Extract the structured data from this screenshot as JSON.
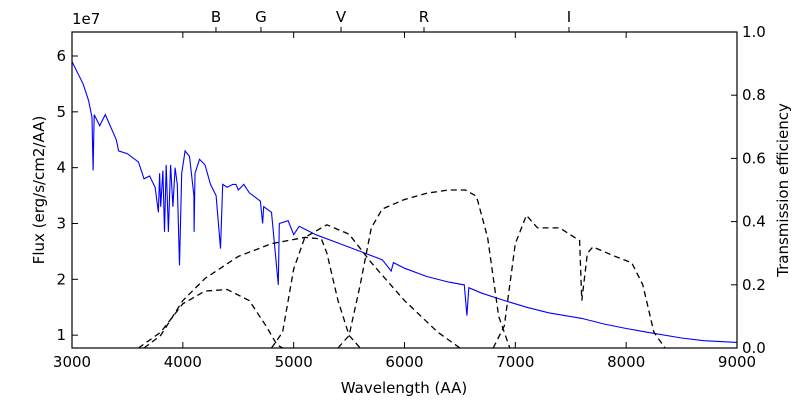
{
  "chart_data": {
    "type": "line",
    "xlabel": "Wavelength (AA)",
    "ylabel": "Flux (erg/s/cm2/AA)",
    "y2label": "Transmission efficiency",
    "y_offset_text": "1e7",
    "xlim": [
      3000,
      9000
    ],
    "xticks": [
      3000,
      4000,
      5000,
      6000,
      7000,
      8000,
      9000
    ],
    "ylim": [
      0.77,
      6.43
    ],
    "yticks": [
      1,
      2,
      3,
      4,
      5,
      6
    ],
    "y2lim": [
      0,
      1
    ],
    "y2ticks": [
      {
        "value": 0,
        "label": "0.0"
      },
      {
        "value": 0.2,
        "label": "0.2"
      },
      {
        "value": 0.4,
        "label": "0.4"
      },
      {
        "value": 0.6,
        "label": "0.6"
      },
      {
        "value": 0.8,
        "label": "0.8"
      },
      {
        "value": 1,
        "label": "1.0"
      }
    ],
    "x2ticks": [
      {
        "value": 4299,
        "label": "B"
      },
      {
        "value": 4705,
        "label": "G"
      },
      {
        "value": 5427,
        "label": "V"
      },
      {
        "value": 6176,
        "label": "R"
      },
      {
        "value": 7484,
        "label": "I"
      }
    ],
    "series": [
      {
        "color": "#0000ff",
        "line_style": "solid",
        "x": [
          3000,
          3100,
          3150,
          3180,
          3190,
          3200,
          3250,
          3300,
          3400,
          3420,
          3500,
          3600,
          3650,
          3700,
          3750,
          3780,
          3790,
          3800,
          3820,
          3835,
          3850,
          3870,
          3890,
          3910,
          3930,
          3950,
          3970,
          3990,
          4020,
          4060,
          4100,
          4102,
          4110,
          4150,
          4200,
          4250,
          4300,
          4340,
          4360,
          4400,
          4450,
          4480,
          4500,
          4550,
          4600,
          4700,
          4720,
          4730,
          4800,
          4861,
          4870,
          4950,
          5000,
          5050,
          5100,
          5200,
          5400,
          5600,
          5800,
          5880,
          5900,
          6000,
          6200,
          6400,
          6540,
          6563,
          6580,
          6700,
          6900,
          7100,
          7300,
          7600,
          7800,
          8000,
          8200,
          8500,
          8700,
          9000
        ],
        "values": [
          5.9,
          5.5,
          5.2,
          4.9,
          3.95,
          4.95,
          4.75,
          4.95,
          4.5,
          4.3,
          4.25,
          4.1,
          3.8,
          3.85,
          3.65,
          3.2,
          3.9,
          3.3,
          3.95,
          2.85,
          4.05,
          2.85,
          4.05,
          3.3,
          4.0,
          3.7,
          2.25,
          3.9,
          4.3,
          4.2,
          3.5,
          2.85,
          3.9,
          4.15,
          4.05,
          3.7,
          3.5,
          2.55,
          3.7,
          3.65,
          3.7,
          3.7,
          3.6,
          3.7,
          3.55,
          3.4,
          3.0,
          3.3,
          3.2,
          1.9,
          3.0,
          3.05,
          2.8,
          2.95,
          2.9,
          2.8,
          2.65,
          2.5,
          2.35,
          2.15,
          2.3,
          2.2,
          2.05,
          1.95,
          1.9,
          1.35,
          1.85,
          1.75,
          1.62,
          1.5,
          1.4,
          1.3,
          1.2,
          1.12,
          1.05,
          0.95,
          0.9,
          0.87
        ]
      },
      {
        "color": "#000000",
        "line_style": "dashed",
        "axis": "y2",
        "x": [
          3600,
          3800,
          4000,
          4200,
          4400,
          4600,
          4750,
          4850,
          4900
        ],
        "values": [
          0,
          0.05,
          0.14,
          0.18,
          0.185,
          0.15,
          0.07,
          0.01,
          0
        ]
      },
      {
        "color": "#000000",
        "line_style": "dashed",
        "axis": "y2",
        "x": [
          3650,
          3800,
          4000,
          4200,
          4500,
          4800,
          5100,
          5250,
          5300,
          5400,
          5500,
          5600
        ],
        "values": [
          0,
          0.04,
          0.15,
          0.22,
          0.29,
          0.33,
          0.35,
          0.345,
          0.3,
          0.15,
          0.04,
          0
        ]
      },
      {
        "color": "#000000",
        "line_style": "dashed",
        "axis": "y2",
        "x": [
          4800,
          4900,
          5000,
          5100,
          5300,
          5500,
          5700,
          6000,
          6300,
          6500
        ],
        "values": [
          0,
          0.05,
          0.25,
          0.35,
          0.39,
          0.36,
          0.27,
          0.15,
          0.05,
          0
        ]
      },
      {
        "color": "#000000",
        "line_style": "dashed",
        "axis": "y2",
        "x": [
          5400,
          5500,
          5600,
          5700,
          5800,
          6000,
          6200,
          6400,
          6550,
          6650,
          6750,
          6850,
          6950
        ],
        "values": [
          0,
          0.04,
          0.2,
          0.38,
          0.44,
          0.47,
          0.49,
          0.5,
          0.5,
          0.48,
          0.35,
          0.1,
          0
        ]
      },
      {
        "color": "#000000",
        "line_style": "dashed",
        "axis": "y2",
        "x": [
          6800,
          6900,
          7000,
          7100,
          7200,
          7400,
          7580,
          7600,
          7650,
          7700,
          7900,
          8050,
          8150,
          8250,
          8350
        ],
        "values": [
          0,
          0.07,
          0.33,
          0.42,
          0.38,
          0.38,
          0.34,
          0.15,
          0.3,
          0.32,
          0.29,
          0.27,
          0.2,
          0.05,
          0
        ]
      }
    ]
  }
}
